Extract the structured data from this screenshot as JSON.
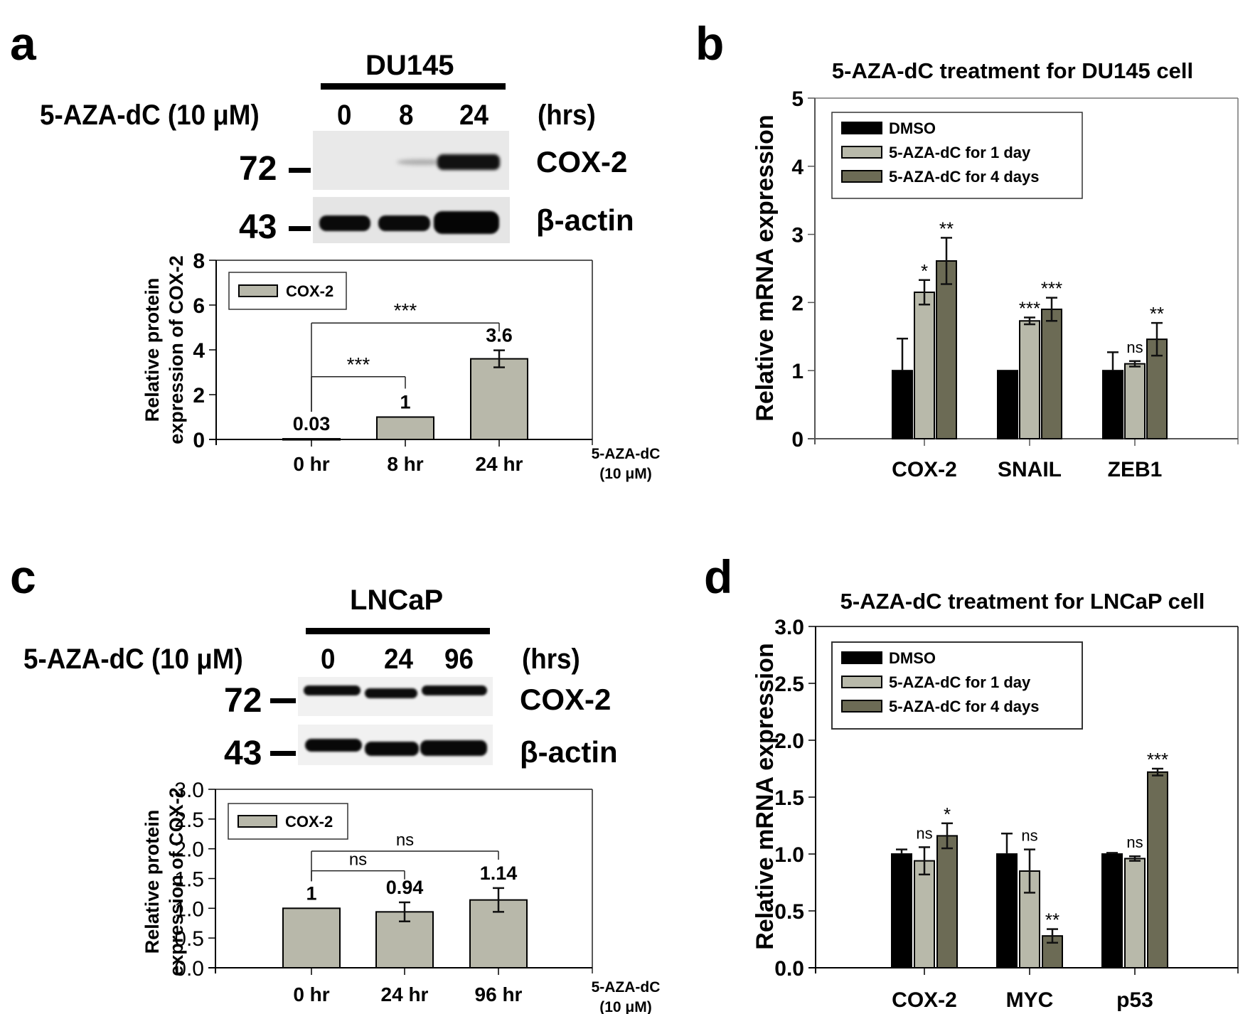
{
  "panels": {
    "a": {
      "letter": "a",
      "cell_line": "DU145",
      "treatment_label": "5-AZA-dC (10 μM)",
      "time_points": [
        "0",
        "8",
        "24"
      ],
      "time_unit": "(hrs)",
      "blots": [
        {
          "marker": "72",
          "protein": "COX-2"
        },
        {
          "marker": "43",
          "protein": "β-actin"
        }
      ]
    },
    "b": {
      "letter": "b"
    },
    "c": {
      "letter": "c",
      "cell_line": "LNCaP",
      "treatment_label": "5-AZA-dC (10 μM)",
      "time_points": [
        "0",
        "24",
        "96"
      ],
      "time_unit": "(hrs)",
      "blots": [
        {
          "marker": "72",
          "protein": "COX-2"
        },
        {
          "marker": "43",
          "protein": "β-actin"
        }
      ]
    },
    "d": {
      "letter": "d"
    }
  },
  "chart_data": [
    {
      "id": "a",
      "type": "bar",
      "title": "",
      "xlabel": "5-AZA-dC (10 μM)",
      "ylabel": "Relative protein expression of COX-2",
      "ylabel_lines": [
        "Relative protein",
        "expression of COX-2"
      ],
      "xlabel_lines": [
        "5-AZA-dC",
        "(10 μM)"
      ],
      "categories": [
        "0 hr",
        "8 hr",
        "24 hr"
      ],
      "ylim": [
        0,
        8
      ],
      "yticks": [
        0,
        2,
        4,
        6,
        8
      ],
      "ytick_labels": [
        "0",
        "2",
        "4",
        "6",
        "8"
      ],
      "legend": {
        "position": "top-left",
        "entries": [
          "COX-2"
        ]
      },
      "series": [
        {
          "name": "COX-2",
          "color": "#b8b8aa",
          "values": [
            0.03,
            1.0,
            3.6
          ],
          "errors": [
            0,
            0,
            0.38
          ]
        }
      ],
      "data_labels": [
        "0.03",
        "1",
        "3.6"
      ],
      "significance": [
        {
          "from": 0,
          "to": 1,
          "label": "***",
          "y": 2.8
        },
        {
          "from": 0,
          "to": 2,
          "label": "***",
          "y": 5.2
        }
      ]
    },
    {
      "id": "b",
      "type": "bar",
      "title": "5-AZA-dC treatment for DU145 cell",
      "xlabel": "",
      "ylabel": "Relative mRNA expression",
      "categories": [
        "COX-2",
        "SNAIL",
        "ZEB1"
      ],
      "ylim": [
        0,
        5
      ],
      "yticks": [
        0,
        1,
        2,
        3,
        4,
        5
      ],
      "ytick_labels": [
        "0",
        "1",
        "2",
        "3",
        "4",
        "5"
      ],
      "legend": {
        "position": "top-left",
        "entries": [
          "DMSO",
          "5-AZA-dC for 1 day",
          "5-AZA-dC for 4 days"
        ]
      },
      "series": [
        {
          "name": "DMSO",
          "color": "#000000",
          "values": [
            1.0,
            1.0,
            1.0
          ],
          "errors": [
            0.47,
            0.0,
            0.27
          ],
          "err_upper_only": true
        },
        {
          "name": "5-AZA-dC for 1 day",
          "color": "#b8b9aa",
          "values": [
            2.15,
            1.73,
            1.1
          ],
          "errors": [
            0.18,
            0.05,
            0.04
          ]
        },
        {
          "name": "5-AZA-dC for 4 days",
          "color": "#6c6b55",
          "values": [
            2.61,
            1.9,
            1.46
          ],
          "errors": [
            0.34,
            0.17,
            0.24
          ]
        }
      ],
      "significance_labels": [
        [
          "",
          "*",
          "**"
        ],
        [
          "",
          "***",
          "***"
        ],
        [
          "",
          "ns",
          "**"
        ]
      ]
    },
    {
      "id": "c",
      "type": "bar",
      "title": "",
      "xlabel": "5-AZA-dC (10 μM)",
      "ylabel": "Relative protein expression of COX-2",
      "ylabel_lines": [
        "Relative protein",
        "expression of COX-2"
      ],
      "xlabel_lines": [
        "5-AZA-dC",
        "(10 μM)"
      ],
      "categories": [
        "0 hr",
        "24 hr",
        "96 hr"
      ],
      "ylim": [
        0,
        3.0
      ],
      "yticks": [
        0,
        0.5,
        1.0,
        1.5,
        2.0,
        2.5,
        3.0
      ],
      "ytick_labels": [
        "0.0",
        "0.5",
        "1.0",
        "1.5",
        "2.0",
        "2.5",
        "3.0"
      ],
      "legend": {
        "position": "top-left",
        "entries": [
          "COX-2"
        ]
      },
      "series": [
        {
          "name": "COX-2",
          "color": "#b8b8aa",
          "values": [
            1.0,
            0.94,
            1.14
          ],
          "errors": [
            0,
            0.16,
            0.2
          ]
        }
      ],
      "data_labels": [
        "1",
        "0.94",
        "1.14"
      ],
      "significance": [
        {
          "from": 0,
          "to": 1,
          "label": "ns",
          "y": 1.63
        },
        {
          "from": 0,
          "to": 2,
          "label": "ns",
          "y": 1.96
        }
      ]
    },
    {
      "id": "d",
      "type": "bar",
      "title": "5-AZA-dC treatment for LNCaP cell",
      "xlabel": "",
      "ylabel": "Relative mRNA expression",
      "categories": [
        "COX-2",
        "MYC",
        "p53"
      ],
      "ylim": [
        0,
        3.0
      ],
      "yticks": [
        0,
        0.5,
        1.0,
        1.5,
        2.0,
        2.5,
        3.0
      ],
      "ytick_labels": [
        "0.0",
        "0.5",
        "1.0",
        "1.5",
        "2.0",
        "2.5",
        "3.0"
      ],
      "legend": {
        "position": "top-left",
        "entries": [
          "DMSO",
          "5-AZA-dC for 1 day",
          "5-AZA-dC for 4 days"
        ]
      },
      "series": [
        {
          "name": "DMSO",
          "color": "#000000",
          "values": [
            1.0,
            1.0,
            1.0
          ],
          "errors": [
            0.04,
            0.18,
            0.01
          ],
          "err_upper_only": true
        },
        {
          "name": "5-AZA-dC for 1 day",
          "color": "#b8b9aa",
          "values": [
            0.94,
            0.85,
            0.96
          ],
          "errors": [
            0.12,
            0.19,
            0.02
          ]
        },
        {
          "name": "5-AZA-dC for 4 days",
          "color": "#6c6b55",
          "values": [
            1.16,
            0.28,
            1.72
          ],
          "errors": [
            0.11,
            0.06,
            0.03
          ]
        }
      ],
      "significance_labels": [
        [
          "",
          "ns",
          "*"
        ],
        [
          "",
          "ns",
          "**"
        ],
        [
          "",
          "ns",
          "***"
        ]
      ]
    }
  ]
}
